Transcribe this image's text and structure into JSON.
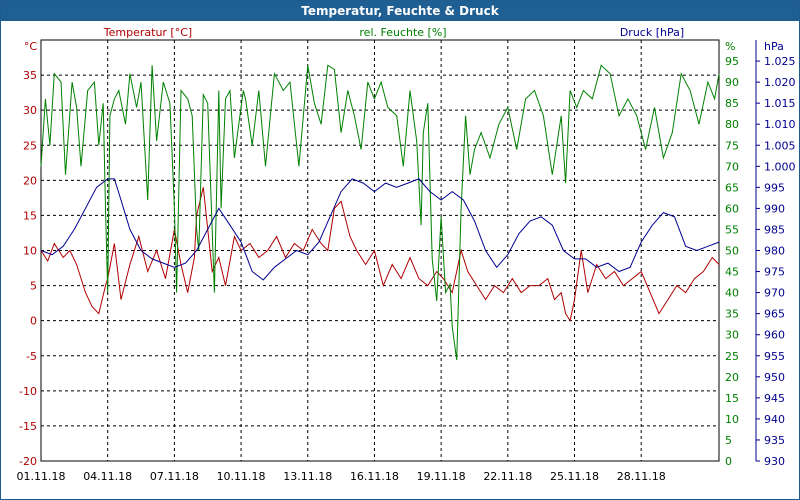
{
  "window": {
    "title": "Temperatur, Feuchte & Druck"
  },
  "colors": {
    "temperature": "#b00000",
    "humidity": "#008000",
    "pressure": "#000090",
    "grid": "#000000",
    "title_bar": "#1f5f94"
  },
  "chart_data": {
    "type": "line",
    "title": "Temperatur, Feuchte & Druck",
    "grid": true,
    "x_ticks": [
      "01.11.18",
      "04.11.18",
      "07.11.18",
      "10.11.18",
      "13.11.18",
      "16.11.18",
      "19.11.18",
      "22.11.18",
      "25.11.18",
      "28.11.18"
    ],
    "x_range_days": [
      0,
      30.5
    ],
    "axes": {
      "left": {
        "label": "Temperatur [°C]",
        "unit": "°C",
        "range": [
          -20,
          40
        ],
        "ticks": [
          -20,
          -15,
          -10,
          -5,
          0,
          5,
          10,
          15,
          20,
          25,
          30,
          35
        ]
      },
      "middle": {
        "label": "rel. Feuchte [%]",
        "unit": "%",
        "range": [
          0,
          100
        ],
        "ticks": [
          0,
          5,
          10,
          15,
          20,
          25,
          30,
          35,
          40,
          45,
          50,
          55,
          60,
          65,
          70,
          75,
          80,
          85,
          90,
          95
        ]
      },
      "right": {
        "label": "Druck [hPa]",
        "unit": "hPa",
        "range": [
          930,
          1030
        ],
        "ticks": [
          "930",
          "935",
          "940",
          "945",
          "950",
          "955",
          "960",
          "965",
          "970",
          "975",
          "980",
          "985",
          "990",
          "995",
          "1.000",
          "1.005",
          "1.010",
          "1.015",
          "1.020",
          "1.025"
        ]
      }
    },
    "series": [
      {
        "name": "Temperatur [°C]",
        "axis": "left",
        "color": "#b00000",
        "x": [
          0,
          0.3,
          0.6,
          1.0,
          1.3,
          1.6,
          2.0,
          2.3,
          2.6,
          2.9,
          3.0,
          3.3,
          3.6,
          4.0,
          4.4,
          4.8,
          5.2,
          5.6,
          6.0,
          6.3,
          6.6,
          6.9,
          7.0,
          7.3,
          7.7,
          8.0,
          8.3,
          8.7,
          9.0,
          9.4,
          9.8,
          10.2,
          10.6,
          11.0,
          11.4,
          11.8,
          12.2,
          12.6,
          12.9,
          13.2,
          13.5,
          13.9,
          14.2,
          14.6,
          15.0,
          15.4,
          15.8,
          16.2,
          16.6,
          17.0,
          17.4,
          17.8,
          18.1,
          18.5,
          18.9,
          19.2,
          19.6,
          20.0,
          20.4,
          20.8,
          21.2,
          21.6,
          22.0,
          22.4,
          22.8,
          23.1,
          23.4,
          23.6,
          23.8,
          24.0,
          24.3,
          24.6,
          25.0,
          25.4,
          25.8,
          26.2,
          26.6,
          27.0,
          27.4,
          27.8,
          28.2,
          28.6,
          29.0,
          29.4,
          29.8,
          30.2,
          30.5
        ],
        "y": [
          10,
          8.5,
          11,
          9,
          10,
          8,
          4,
          2,
          1,
          5,
          6,
          11,
          3,
          8,
          12,
          7,
          10,
          6,
          13,
          8,
          4,
          9,
          15,
          19,
          7,
          9,
          5,
          12,
          10,
          11,
          9,
          10,
          12,
          9,
          11,
          10,
          13,
          11,
          10,
          16,
          17,
          12,
          10,
          8,
          10,
          5,
          8,
          6,
          9,
          6,
          5,
          7,
          6,
          4,
          10,
          7,
          5,
          3,
          5,
          4,
          6,
          4,
          5,
          5,
          6,
          3,
          4,
          1,
          0,
          3,
          10,
          4,
          8,
          6,
          7,
          5,
          6,
          7,
          4,
          1,
          3,
          5,
          4,
          6,
          7,
          9,
          8
        ]
      },
      {
        "name": "rel. Feuchte [%]",
        "axis": "middle",
        "color": "#008000",
        "x": [
          0,
          0.2,
          0.4,
          0.6,
          0.9,
          1.1,
          1.4,
          1.6,
          1.8,
          2.1,
          2.4,
          2.6,
          2.8,
          2.9,
          3.0,
          3.1,
          3.3,
          3.5,
          3.8,
          4.0,
          4.3,
          4.5,
          4.8,
          5.0,
          5.2,
          5.5,
          5.8,
          6.0,
          6.1,
          6.3,
          6.6,
          6.8,
          7.0,
          7.1,
          7.3,
          7.5,
          7.8,
          8.0,
          8.1,
          8.3,
          8.5,
          8.7,
          8.9,
          9.1,
          9.2,
          9.5,
          9.8,
          10.1,
          10.5,
          10.9,
          11.2,
          11.6,
          12.0,
          12.3,
          12.6,
          12.9,
          13.2,
          13.5,
          13.8,
          14.1,
          14.4,
          14.7,
          15.0,
          15.3,
          15.6,
          16.0,
          16.3,
          16.6,
          16.9,
          17.1,
          17.2,
          17.4,
          17.6,
          17.8,
          18.0,
          18.2,
          18.4,
          18.5,
          18.7,
          18.9,
          19.1,
          19.3,
          19.5,
          19.8,
          20.2,
          20.6,
          21.0,
          21.4,
          21.8,
          22.2,
          22.6,
          23.0,
          23.4,
          23.6,
          23.8,
          24.1,
          24.4,
          24.8,
          25.2,
          25.6,
          26.0,
          26.4,
          26.8,
          27.2,
          27.6,
          28.0,
          28.4,
          28.8,
          29.2,
          29.6,
          30.0,
          30.3,
          30.5
        ],
        "y": [
          70,
          86,
          75,
          92,
          90,
          68,
          90,
          84,
          70,
          88,
          90,
          75,
          85,
          60,
          40,
          82,
          86,
          88,
          80,
          92,
          84,
          90,
          62,
          94,
          76,
          90,
          85,
          60,
          40,
          88,
          86,
          82,
          55,
          50,
          87,
          85,
          40,
          88,
          60,
          86,
          88,
          72,
          80,
          88,
          86,
          75,
          88,
          70,
          92,
          88,
          90,
          70,
          94,
          85,
          80,
          94,
          93,
          78,
          88,
          82,
          74,
          90,
          86,
          90,
          84,
          82,
          70,
          88,
          76,
          56,
          78,
          85,
          48,
          38,
          58,
          40,
          42,
          32,
          24,
          60,
          82,
          68,
          74,
          78,
          72,
          80,
          84,
          74,
          86,
          88,
          82,
          68,
          82,
          66,
          88,
          84,
          88,
          86,
          94,
          92,
          82,
          86,
          82,
          74,
          84,
          72,
          78,
          92,
          88,
          80,
          90,
          86,
          92
        ]
      },
      {
        "name": "Druck [hPa]",
        "axis": "right",
        "color": "#000090",
        "x": [
          0,
          0.5,
          1.0,
          1.5,
          2.0,
          2.5,
          3.0,
          3.3,
          3.6,
          4.0,
          4.5,
          5.0,
          5.5,
          6.0,
          6.5,
          7.0,
          7.5,
          8.0,
          8.5,
          9.0,
          9.5,
          10.0,
          10.5,
          11.0,
          11.5,
          12.0,
          12.5,
          13.0,
          13.5,
          14.0,
          14.5,
          15.0,
          15.5,
          16.0,
          16.5,
          17.0,
          17.5,
          18.0,
          18.5,
          19.0,
          19.5,
          20.0,
          20.5,
          21.0,
          21.5,
          22.0,
          22.5,
          23.0,
          23.5,
          24.0,
          24.5,
          25.0,
          25.5,
          26.0,
          26.5,
          27.0,
          27.5,
          28.0,
          28.5,
          29.0,
          29.5,
          30.0,
          30.5
        ],
        "y": [
          980,
          979,
          981,
          985,
          990,
          995,
          997,
          997,
          992,
          985,
          980,
          978,
          977,
          976,
          977,
          980,
          985,
          990,
          986,
          982,
          975,
          973,
          976,
          978,
          980,
          979,
          982,
          988,
          994,
          997,
          996,
          994,
          996,
          995,
          996,
          997,
          994,
          992,
          994,
          992,
          987,
          980,
          976,
          979,
          984,
          987,
          988,
          986,
          980,
          978,
          978,
          976,
          977,
          975,
          976,
          982,
          986,
          989,
          988,
          981,
          980,
          981,
          982
        ]
      }
    ]
  }
}
